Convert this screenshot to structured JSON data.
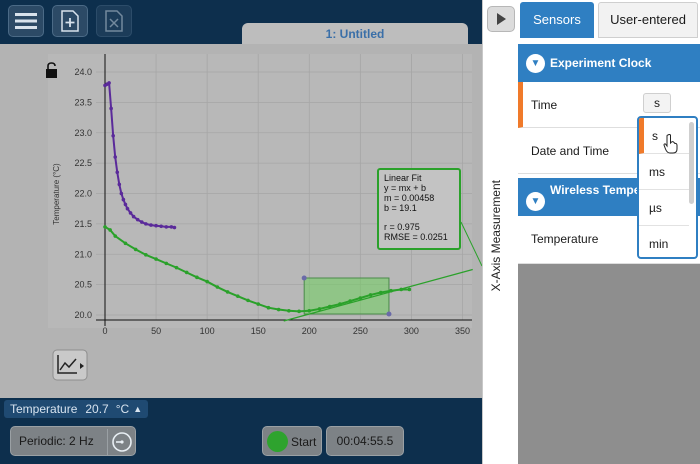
{
  "toolbar": {
    "tab_title": "1: Untitled"
  },
  "graph": {
    "y_axis_label": "Temperature (°C)",
    "fit_box": {
      "title": "Linear Fit",
      "equation": "y = mx + b",
      "m": "m = 0.00458",
      "b": "b = 19.1",
      "r": "r = 0.975",
      "rmse": "RMSE = 0.0251"
    },
    "colors": {
      "purple_series": "#5a2a9a",
      "green_series": "#2aa12a",
      "fit_box_border": "#2aa12a",
      "selection_fill": "#6fcf5f"
    }
  },
  "chart_data": {
    "type": "scatter",
    "xlabel": "",
    "ylabel": "Temperature (°C)",
    "xlim": [
      -5,
      360
    ],
    "ylim": [
      19.95,
      24.15
    ],
    "xticks": [
      0,
      50,
      100,
      150,
      200,
      250,
      300,
      350
    ],
    "yticks": [
      20.0,
      20.5,
      21.0,
      21.5,
      22.0,
      22.5,
      23.0,
      23.5,
      24.0
    ],
    "series": [
      {
        "x": [
          0,
          2,
          4,
          6,
          8,
          10,
          12,
          14,
          16,
          18,
          20,
          22,
          25,
          28,
          32,
          36,
          40,
          45,
          50,
          55,
          60,
          65,
          68
        ],
        "y": [
          23.78,
          23.8,
          23.82,
          23.4,
          22.95,
          22.6,
          22.35,
          22.15,
          22.0,
          21.9,
          21.82,
          21.75,
          21.68,
          21.62,
          21.57,
          21.53,
          21.5,
          21.48,
          21.47,
          21.46,
          21.45,
          21.45,
          21.44
        ]
      },
      {
        "x": [
          0,
          5,
          10,
          20,
          30,
          40,
          50,
          60,
          70,
          80,
          90,
          100,
          110,
          120,
          130,
          140,
          150,
          160,
          170,
          180,
          190,
          200,
          210,
          220,
          230,
          240,
          250,
          260,
          270,
          280,
          290,
          298
        ],
        "y": [
          21.45,
          21.4,
          21.3,
          21.18,
          21.08,
          20.99,
          20.92,
          20.85,
          20.78,
          20.7,
          20.62,
          20.55,
          20.46,
          20.38,
          20.31,
          20.24,
          20.18,
          20.12,
          20.09,
          20.07,
          20.06,
          20.07,
          20.1,
          20.14,
          20.18,
          20.23,
          20.28,
          20.33,
          20.37,
          20.4,
          20.42,
          20.42
        ]
      }
    ],
    "fit_line": {
      "m": 0.00458,
      "b": 19.1,
      "x_range": [
        175,
        360
      ]
    },
    "selection_range": [
      195,
      278
    ]
  },
  "sensor_bar": {
    "name": "Temperature",
    "value": "20.7",
    "unit": "°C"
  },
  "collection": {
    "mode": "Periodic: 2 Hz",
    "start": "Start",
    "elapsed": "00:04:55.5"
  },
  "side_panel": {
    "vertical_label": "X-Axis Measurement",
    "tabs": [
      "Sensors",
      "User-entered"
    ],
    "groups": [
      {
        "title": "Experiment Clock"
      },
      {
        "title": "Wireless Temperature Sen"
      }
    ],
    "rows": {
      "time": "Time",
      "date_time": "Date and Time",
      "temperature": "Temperature"
    },
    "time_unit": "s",
    "unit_options": [
      "s",
      "ms",
      "µs",
      "min"
    ]
  }
}
